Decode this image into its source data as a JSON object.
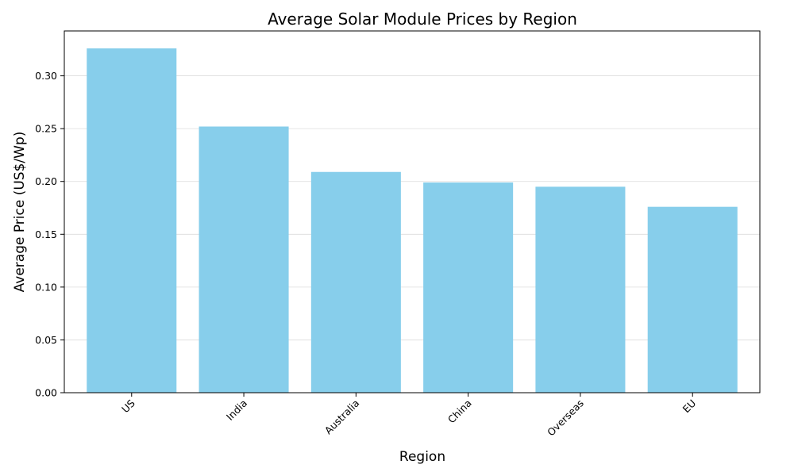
{
  "chart_data": {
    "type": "bar",
    "title": "Average Solar Module Prices by Region",
    "xlabel": "Region",
    "ylabel": "Average Price (US$/Wp)",
    "categories": [
      "US",
      "India",
      "Australia",
      "China",
      "Overseas",
      "EU"
    ],
    "values": [
      0.326,
      0.252,
      0.209,
      0.199,
      0.195,
      0.176
    ],
    "ylim": [
      0,
      0.3425
    ],
    "yticks": [
      0.0,
      0.05,
      0.1,
      0.15,
      0.2,
      0.25,
      0.3
    ],
    "grid": "y",
    "xtick_rotation": 45,
    "bar_color": "#87ceeb",
    "legend": "none"
  }
}
